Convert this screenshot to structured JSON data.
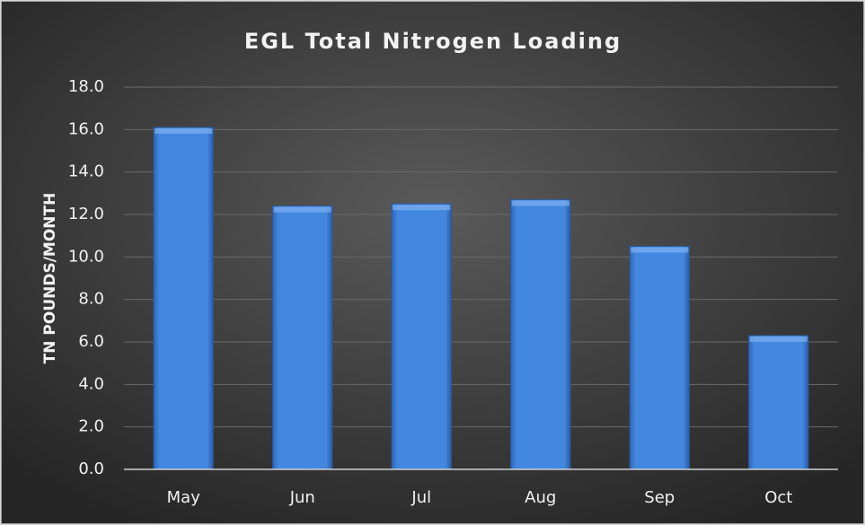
{
  "chart_data": {
    "type": "bar",
    "title": "EGL Total Nitrogen Loading",
    "y_label": "TN POUNDS/MONTH",
    "categories": [
      "May",
      "Jun",
      "Jul",
      "Aug",
      "Sep",
      "Oct"
    ],
    "values": [
      16.1,
      12.4,
      12.5,
      12.7,
      10.5,
      6.3
    ],
    "color": "#3f7fd6",
    "ylim": [
      0,
      18
    ],
    "yticks": [
      {
        "value": 0,
        "label": "0.0"
      },
      {
        "value": 2,
        "label": "2.0"
      },
      {
        "value": 4,
        "label": "4.0"
      },
      {
        "value": 6,
        "label": "6.0"
      },
      {
        "value": 8,
        "label": "8.0"
      },
      {
        "value": 10,
        "label": "10.0"
      },
      {
        "value": 12,
        "label": "12.0"
      },
      {
        "value": 14,
        "label": "14.0"
      },
      {
        "value": 16,
        "label": "16.0"
      },
      {
        "value": 18,
        "label": "18.0"
      }
    ],
    "grid": true
  }
}
